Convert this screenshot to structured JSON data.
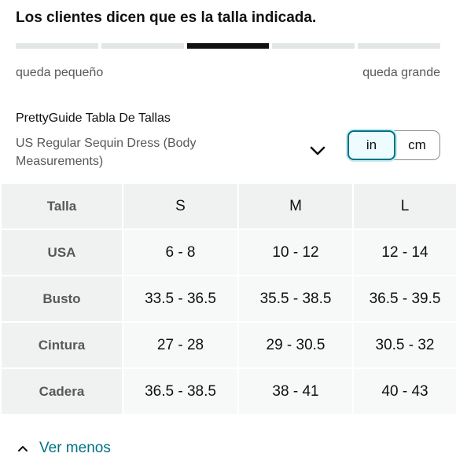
{
  "fit": {
    "headline": "Los clientes dicen que es la talla indicada.",
    "segments": 5,
    "active_segment": 3,
    "left_label": "queda pequeño",
    "right_label": "queda grande"
  },
  "guide": {
    "title": "PrettyGuide Tabla De Tallas",
    "subtitle": "US Regular Sequin Dress (Body Measurements)"
  },
  "units": {
    "in_label": "in",
    "cm_label": "cm",
    "selected": "in"
  },
  "table": {
    "header": [
      "Talla",
      "S",
      "M",
      "L"
    ],
    "rows": [
      [
        "USA",
        "6 - 8",
        "10 - 12",
        "12 - 14"
      ],
      [
        "Busto",
        "33.5 - 36.5",
        "35.5 - 38.5",
        "36.5 - 39.5"
      ],
      [
        "Cintura",
        "27 - 28",
        "29 - 30.5",
        "30.5 - 32"
      ],
      [
        "Cadera",
        "36.5 - 38.5",
        "38 - 41",
        "40 - 43"
      ]
    ]
  },
  "footer": {
    "toggle_label": "Ver menos"
  },
  "colors": {
    "accent": "#007185",
    "active_segment": "#0f1111",
    "inactive_segment": "#e3e6e6",
    "table_header_bg": "#f0f2f2",
    "table_cell_bg": "#f7f8f8"
  }
}
